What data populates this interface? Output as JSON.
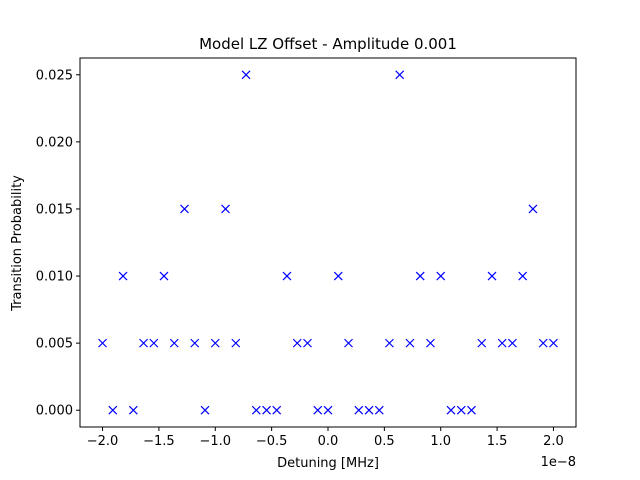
{
  "chart_data": {
    "type": "scatter",
    "title": "Model LZ Offset - Amplitude 0.001",
    "xlabel": "Detuning [MHz]",
    "ylabel": "Transition Probability",
    "x_offset_label": "1e−8",
    "marker": "x",
    "color": "#0000ff",
    "xlim": [
      -2.2e-08,
      2.2e-08
    ],
    "ylim": [
      -0.00125,
      0.02625
    ],
    "xticks": [
      -2.0,
      -1.5,
      -1.0,
      -0.5,
      0.0,
      0.5,
      1.0,
      1.5,
      2.0
    ],
    "xtick_labels": [
      "−2.0",
      "−1.5",
      "−1.0",
      "−0.5",
      "0.0",
      "0.5",
      "1.0",
      "1.5",
      "2.0"
    ],
    "xtick_scale": 1e-08,
    "yticks": [
      0.0,
      0.005,
      0.01,
      0.015,
      0.02,
      0.025
    ],
    "ytick_labels": [
      "0.000",
      "0.005",
      "0.010",
      "0.015",
      "0.020",
      "0.025"
    ],
    "grid": false,
    "x": [
      -2e-08,
      -1.909e-08,
      -1.818e-08,
      -1.727e-08,
      -1.636e-08,
      -1.545e-08,
      -1.455e-08,
      -1.364e-08,
      -1.273e-08,
      -1.182e-08,
      -1.091e-08,
      -1e-08,
      -9.09e-09,
      -8.18e-09,
      -7.27e-09,
      -6.36e-09,
      -5.45e-09,
      -4.55e-09,
      -3.64e-09,
      -2.73e-09,
      -1.82e-09,
      -9.1e-10,
      0.0,
      9.1e-10,
      1.82e-09,
      2.73e-09,
      3.64e-09,
      4.55e-09,
      5.45e-09,
      6.36e-09,
      7.27e-09,
      8.18e-09,
      9.09e-09,
      1e-08,
      1.091e-08,
      1.182e-08,
      1.273e-08,
      1.364e-08,
      1.455e-08,
      1.545e-08,
      1.636e-08,
      1.727e-08,
      1.818e-08,
      1.909e-08,
      2e-08
    ],
    "y": [
      0.005,
      0.0,
      0.01,
      0.0,
      0.005,
      0.005,
      0.01,
      0.005,
      0.015,
      0.005,
      0.0,
      0.005,
      0.015,
      0.005,
      0.025,
      0.0,
      0.0,
      0.0,
      0.01,
      0.005,
      0.005,
      0.0,
      0.0,
      0.01,
      0.005,
      0.0,
      0.0,
      0.0,
      0.005,
      0.025,
      0.005,
      0.01,
      0.005,
      0.01,
      0.0,
      0.0,
      0.0,
      0.005,
      0.01,
      0.005,
      0.005,
      0.01,
      0.015,
      0.005,
      0.005
    ]
  }
}
